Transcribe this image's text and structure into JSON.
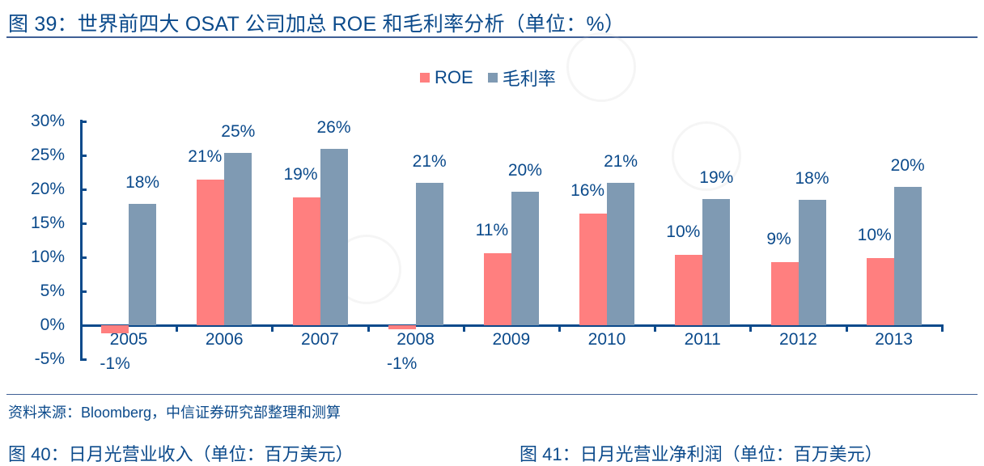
{
  "figure": {
    "title": "图 39：世界前四大 OSAT 公司加总 ROE 和毛利率分析（单位：%）",
    "source": "资料来源：Bloomberg，中信证券研究部整理和测算",
    "next_figures": [
      "图 40：日月光营业收入（单位：百万美元）",
      "图 41：日月光营业净利润（单位：百万美元）"
    ]
  },
  "legend": [
    {
      "label": "ROE",
      "color": "#ff7f7f"
    },
    {
      "label": "毛利率",
      "color": "#7f9ab3"
    }
  ],
  "y_ticks": [
    "30%",
    "25%",
    "20%",
    "15%",
    "10%",
    "5%",
    "0%",
    "-5%"
  ],
  "chart_data": {
    "type": "bar",
    "title": "世界前四大 OSAT 公司加总 ROE 和毛利率分析（单位：%）",
    "xlabel": "",
    "ylabel": "%",
    "ylim": [
      -5,
      30
    ],
    "yticks": [
      -5,
      0,
      5,
      10,
      15,
      20,
      25,
      30
    ],
    "grid": false,
    "legend_position": "top",
    "categories": [
      "2005",
      "2006",
      "2007",
      "2008",
      "2009",
      "2010",
      "2011",
      "2012",
      "2013"
    ],
    "series": [
      {
        "name": "ROE",
        "color": "#ff7f7f",
        "values": [
          -1.2,
          21.4,
          18.8,
          -0.6,
          10.6,
          16.4,
          10.4,
          9.3,
          9.9
        ],
        "labels": [
          "-1%",
          "21%",
          "19%",
          "-1%",
          "11%",
          "16%",
          "10%",
          "9%",
          "10%"
        ]
      },
      {
        "name": "毛利率",
        "color": "#7f9ab3",
        "values": [
          17.9,
          25.3,
          26.0,
          20.9,
          19.6,
          21.0,
          18.6,
          18.4,
          20.3
        ],
        "labels": [
          "18%",
          "25%",
          "26%",
          "21%",
          "20%",
          "21%",
          "19%",
          "18%",
          "20%"
        ]
      }
    ]
  }
}
